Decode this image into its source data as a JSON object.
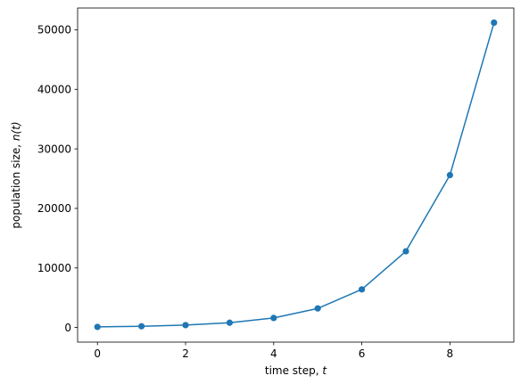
{
  "chart_data": {
    "type": "line",
    "title": "",
    "xlabel": "time step, ",
    "xlabel_var": "t",
    "ylabel": "population size, ",
    "ylabel_var": "n(t)",
    "x": [
      0,
      1,
      2,
      3,
      4,
      5,
      6,
      7,
      8,
      9
    ],
    "series": [
      {
        "values": [
          100,
          200,
          400,
          800,
          1600,
          3200,
          6400,
          12800,
          25600,
          51200
        ]
      }
    ],
    "xlim": [
      -0.45,
      9.45
    ],
    "ylim": [
      -2455,
      53655
    ],
    "xticks": [
      0,
      2,
      4,
      6,
      8
    ],
    "xtick_labels": [
      "0",
      "2",
      "4",
      "6",
      "8"
    ],
    "yticks": [
      0,
      10000,
      20000,
      30000,
      40000,
      50000
    ],
    "ytick_labels": [
      "0",
      "10000",
      "20000",
      "30000",
      "40000",
      "50000"
    ],
    "grid": false,
    "markers": true,
    "line_color": "#1f77b4",
    "marker_color": "#1f77b4"
  }
}
